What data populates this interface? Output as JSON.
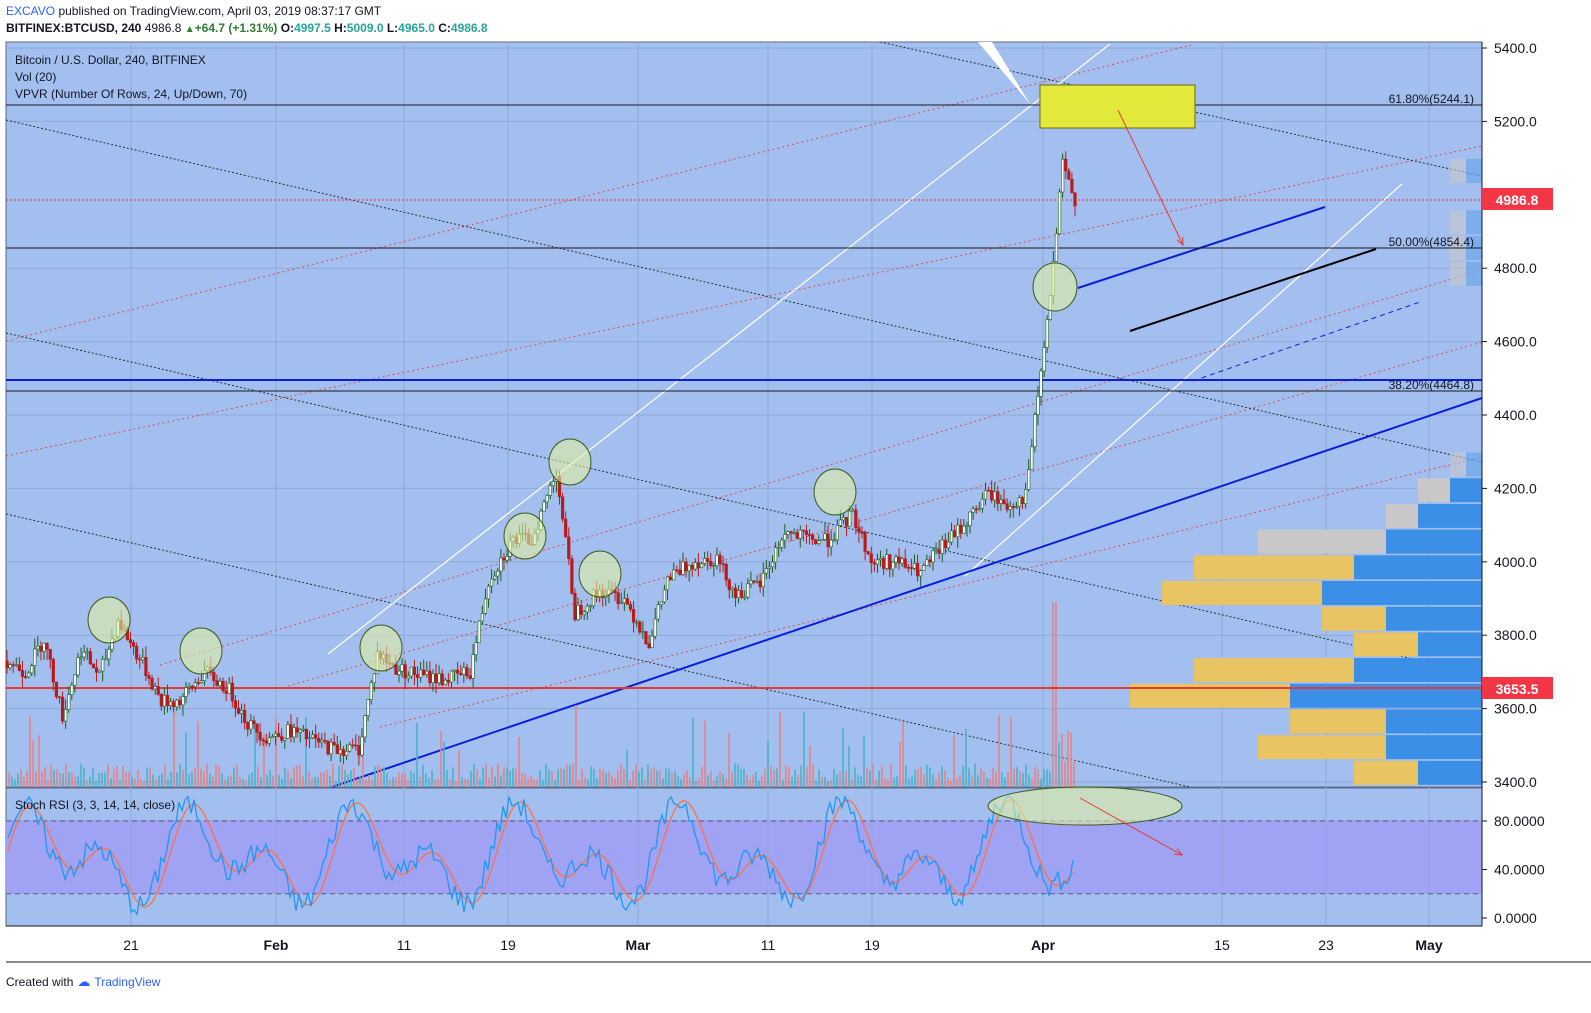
{
  "header": {
    "publisher": "EXCAVO",
    "published_text": " published on TradingView.com, April 03, 2019 08:37:17 GMT",
    "symbol": "BITFINEX:BTCUSD, 240",
    "last": "4986.8",
    "change": "+64.7 (+1.31%)",
    "o_label": "O:",
    "o_val": "4997.5",
    "h_label": "H:",
    "h_val": "5009.0",
    "l_label": "L:",
    "l_val": "4965.0",
    "c_label": "C:",
    "c_val": "4986.8"
  },
  "legend": {
    "title": "Bitcoin / U.S. Dollar, 240, BITFINEX",
    "vol": "Vol (20)",
    "vpvr": "VPVR (Number Of Rows, 24, Up/Down, 70)",
    "stoch": "Stoch RSI (3, 3, 14, 14, close)"
  },
  "footer": {
    "created": "Created with",
    "brand": "TradingView"
  },
  "colors": {
    "pane_bg": "#a3bff0",
    "candle_up": "#1b5e20",
    "candle_down": "#b71c1c",
    "trend_blue": "#0a1fd6",
    "support_red": "#e53935",
    "highlight": "#e3e93b",
    "k_line": "#2196f3",
    "d_line": "#ff7043"
  },
  "chart_data": [
    {
      "type": "candlestick",
      "title": "Bitcoin / U.S. Dollar, 240, BITFINEX",
      "x_ticks": [
        "21",
        "Feb",
        "11",
        "19",
        "Mar",
        "11",
        "19",
        "Apr",
        "15",
        "23",
        "May"
      ],
      "y_ticks": [
        "5400.0",
        "5200.0",
        "4800.0",
        "4600.0",
        "4400.0",
        "4200.0",
        "4000.0",
        "3800.0",
        "3600.0",
        "3400.0"
      ],
      "ylim": [
        3400,
        5400
      ],
      "price_path": [
        [
          0,
          3730
        ],
        [
          3,
          3700
        ],
        [
          6,
          3790
        ],
        [
          9,
          3580
        ],
        [
          12,
          3760
        ],
        [
          15,
          3690
        ],
        [
          18,
          3840
        ],
        [
          22,
          3720
        ],
        [
          25,
          3620
        ],
        [
          28,
          3620
        ],
        [
          32,
          3700
        ],
        [
          36,
          3650
        ],
        [
          39,
          3560
        ],
        [
          42,
          3520
        ],
        [
          46,
          3540
        ],
        [
          50,
          3510
        ],
        [
          53,
          3490
        ],
        [
          57,
          3490
        ],
        [
          60,
          3750
        ],
        [
          63,
          3710
        ],
        [
          67,
          3690
        ],
        [
          71,
          3680
        ],
        [
          75,
          3700
        ],
        [
          78,
          3950
        ],
        [
          82,
          4060
        ],
        [
          85,
          4060
        ],
        [
          89,
          4250
        ],
        [
          92,
          3860
        ],
        [
          96,
          3920
        ],
        [
          100,
          3900
        ],
        [
          104,
          3780
        ],
        [
          107,
          3950
        ],
        [
          111,
          4000
        ],
        [
          115,
          4010
        ],
        [
          118,
          3910
        ],
        [
          122,
          3940
        ],
        [
          126,
          4080
        ],
        [
          130,
          4060
        ],
        [
          133,
          4060
        ],
        [
          137,
          4130
        ],
        [
          140,
          4000
        ],
        [
          144,
          4000
        ],
        [
          148,
          3970
        ],
        [
          152,
          4050
        ],
        [
          155,
          4100
        ],
        [
          159,
          4190
        ],
        [
          162,
          4150
        ],
        [
          165,
          4180
        ],
        [
          169,
          4720
        ],
        [
          171,
          5080
        ],
        [
          173,
          4986.8
        ]
      ],
      "annotations": {
        "fib_618": "61.80%(5244.1)",
        "fib_50": "50.00%(4854.4)",
        "fib_382": "38.20%(4464.8)",
        "last_price": "4986.8",
        "support": "3653.5"
      },
      "vpvr_rows": [
        {
          "price": 3425,
          "up": 0.2,
          "down": 0.2
        },
        {
          "price": 3495,
          "up": 0.4,
          "down": 0.3
        },
        {
          "price": 3565,
          "up": 0.3,
          "down": 0.3
        },
        {
          "price": 3635,
          "up": 0.5,
          "down": 0.6
        },
        {
          "price": 3705,
          "up": 0.5,
          "down": 0.4
        },
        {
          "price": 3775,
          "up": 0.2,
          "down": 0.2
        },
        {
          "price": 3845,
          "up": 0.2,
          "down": 0.3
        },
        {
          "price": 3915,
          "up": 0.5,
          "down": 0.5
        },
        {
          "price": 3985,
          "up": 0.5,
          "down": 0.4
        },
        {
          "price": 4055,
          "up": 0.4,
          "down": 0.3
        },
        {
          "price": 4125,
          "up": 0.1,
          "down": 0.2
        },
        {
          "price": 4195,
          "up": 0.1,
          "down": 0.1
        },
        {
          "price": 4265,
          "up": 0.05,
          "down": 0.05
        },
        {
          "price": 4785,
          "up": 0.05,
          "down": 0.05
        },
        {
          "price": 4855,
          "up": 0.05,
          "down": 0.05
        },
        {
          "price": 4925,
          "up": 0.05,
          "down": 0.05
        },
        {
          "price": 5065,
          "up": 0.05,
          "down": 0.05
        }
      ]
    },
    {
      "type": "line",
      "title": "Stoch RSI (3, 3, 14, 14, close)",
      "y_ticks": [
        "80.0000",
        "40.0000",
        "0.0000"
      ],
      "ylim": [
        0,
        100
      ],
      "bands": [
        20,
        80
      ]
    }
  ]
}
